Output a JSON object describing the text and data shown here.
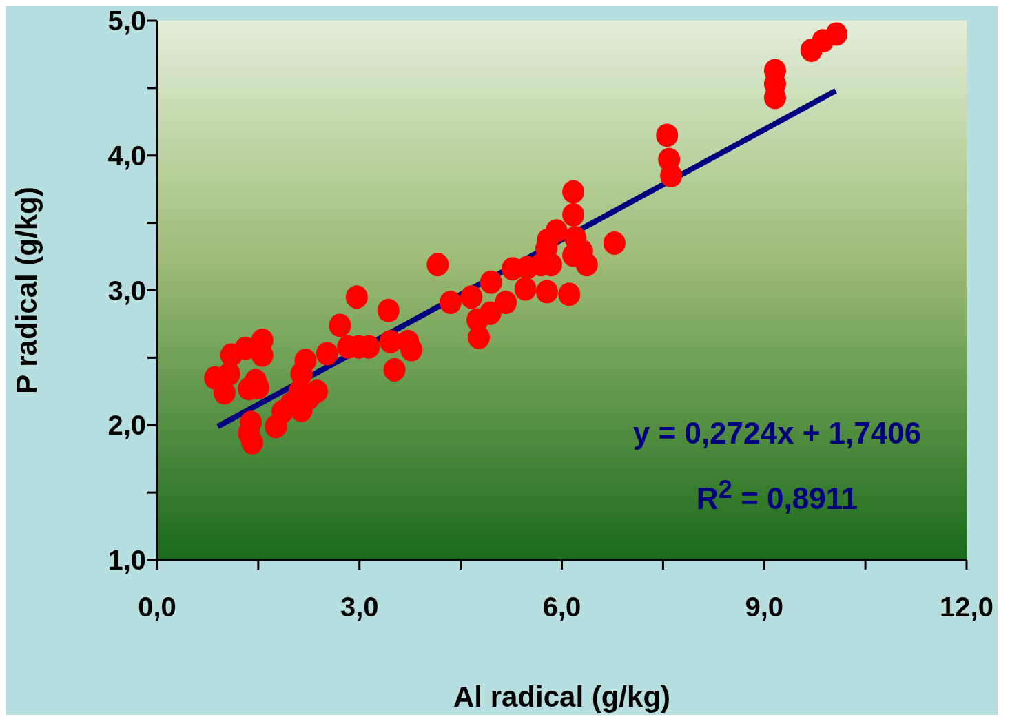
{
  "chart_data": {
    "type": "scatter",
    "xlabel": "Al radical (g/kg)",
    "ylabel": "P radical (g/kg)",
    "xlim": [
      0,
      12
    ],
    "ylim": [
      1,
      5
    ],
    "xticks": [
      {
        "value": 0,
        "label": "0,0"
      },
      {
        "value": 1.5,
        "label": null
      },
      {
        "value": 3,
        "label": "3,0"
      },
      {
        "value": 4.5,
        "label": null
      },
      {
        "value": 6,
        "label": "6,0"
      },
      {
        "value": 7.5,
        "label": null
      },
      {
        "value": 9,
        "label": "9,0"
      },
      {
        "value": 10.5,
        "label": null
      },
      {
        "value": 12,
        "label": "12,0"
      }
    ],
    "yticks": [
      {
        "value": 1,
        "label": "1,0"
      },
      {
        "value": 1.5,
        "label": null
      },
      {
        "value": 2,
        "label": "2,0"
      },
      {
        "value": 2.5,
        "label": null
      },
      {
        "value": 3,
        "label": "3,0"
      },
      {
        "value": 3.5,
        "label": null
      },
      {
        "value": 4,
        "label": "4,0"
      },
      {
        "value": 4.5,
        "label": null
      },
      {
        "value": 5,
        "label": "5,0"
      }
    ],
    "grid": false,
    "legend": false,
    "marker": "circle",
    "series": [
      {
        "color": "#ff0000",
        "x": [
          0.86,
          1.0,
          1.07,
          1.1,
          1.31,
          1.56,
          1.56,
          1.36,
          1.46,
          1.5,
          1.39,
          1.36,
          1.41,
          1.76,
          1.86,
          1.99,
          2.11,
          2.14,
          2.2,
          2.14,
          2.25,
          2.37,
          2.52,
          2.71,
          2.83,
          2.96,
          2.99,
          3.14,
          3.43,
          3.46,
          3.52,
          3.72,
          3.77,
          4.16,
          4.35,
          4.66,
          4.75,
          4.77,
          4.95,
          4.94,
          5.17,
          5.27,
          5.46,
          5.49,
          5.69,
          5.77,
          5.79,
          5.84,
          5.78,
          5.92,
          6.11,
          6.17,
          6.17,
          6.2,
          6.17,
          6.3,
          6.37,
          6.78,
          7.56,
          7.59,
          7.62,
          9.16,
          9.16,
          9.16,
          9.7,
          9.87,
          10.07
        ],
        "values": [
          2.35,
          2.24,
          2.38,
          2.52,
          2.57,
          2.63,
          2.52,
          2.27,
          2.33,
          2.28,
          2.02,
          1.94,
          1.87,
          1.99,
          2.1,
          2.16,
          2.25,
          2.38,
          2.48,
          2.11,
          2.2,
          2.25,
          2.53,
          2.74,
          2.58,
          2.95,
          2.58,
          2.58,
          2.85,
          2.62,
          2.41,
          2.62,
          2.56,
          3.19,
          2.91,
          2.95,
          2.78,
          2.65,
          3.06,
          2.83,
          2.91,
          3.16,
          3.01,
          3.17,
          3.19,
          3.31,
          3.37,
          3.19,
          2.99,
          3.44,
          2.97,
          3.73,
          3.56,
          3.39,
          3.26,
          3.29,
          3.19,
          3.35,
          4.15,
          3.97,
          3.85,
          4.63,
          4.53,
          4.43,
          4.78,
          4.85,
          4.9
        ]
      },
      {
        "type": "line",
        "color": "#000080",
        "marker": "none",
        "line_style": "solid",
        "x": [
          0.9,
          10.06
        ],
        "values": [
          1.99,
          4.48
        ]
      }
    ],
    "annotations": [
      "y = 0,2724x + 1,7406",
      "R$^{2}$ = 0,8911"
    ]
  }
}
